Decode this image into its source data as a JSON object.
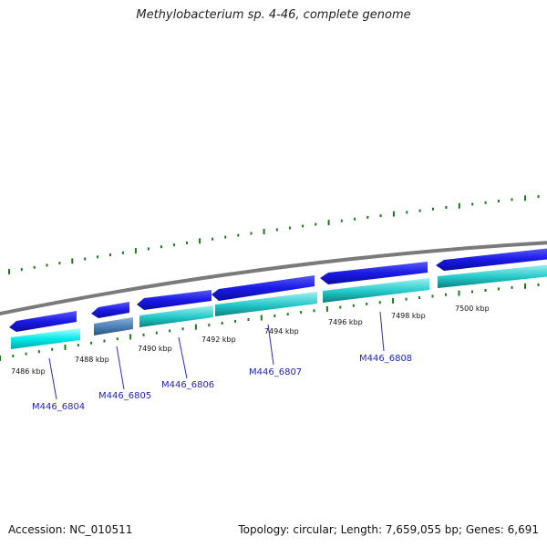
{
  "title": "Methylobacterium sp. 4-46, complete genome",
  "footer": {
    "accession": "Accession: NC_010511",
    "summary": "Topology: circular; Length: 7,659,055 bp; Genes: 6,691"
  },
  "colors": {
    "backbone": "#8a8a8a",
    "forward_gene": "#1a1ae6",
    "reverse_gene": "#22c8c8",
    "rna_like_gene": "#00e5e5",
    "pseudo_gene": "#4a7fb5",
    "tick": "#1a7a1a",
    "gene_label": "#1f1fbf"
  },
  "scale_labels": [
    "7486 kbp",
    "7488 kbp",
    "7490 kbp",
    "7492 kbp",
    "7494 kbp",
    "7496 kbp",
    "7498 kbp",
    "7500 kbp"
  ],
  "gene_labels": [
    "M446_6804",
    "M446_6805",
    "M446_6806",
    "M446_6807",
    "M446_6808"
  ]
}
